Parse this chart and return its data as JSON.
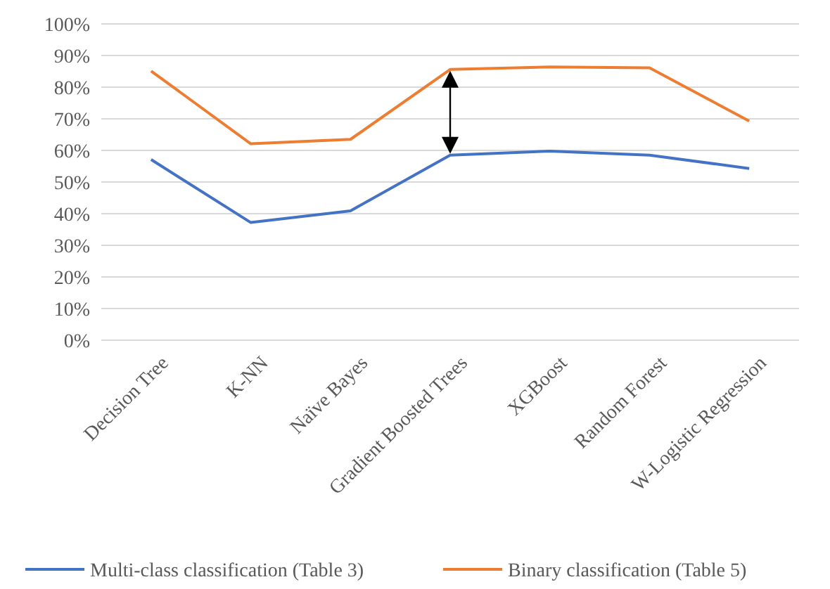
{
  "chart_data": {
    "type": "line",
    "categories": [
      "Decision Tree",
      "K-NN",
      "Naïve Bayes",
      "Gradient Boosted Trees",
      "XGBoost",
      "Random Forest",
      "W-Logistic Regression"
    ],
    "series": [
      {
        "name": "Multi-class classification (Table 3)",
        "color": "#4472c4",
        "values": [
          57.1,
          37.2,
          40.9,
          58.5,
          59.8,
          58.5,
          54.3
        ]
      },
      {
        "name": "Binary classification (Table 5)",
        "color": "#ed7d31",
        "values": [
          85.1,
          62.1,
          63.5,
          85.6,
          86.4,
          86.1,
          69.3
        ]
      }
    ],
    "ylim": [
      0,
      100
    ],
    "yticks": [
      {
        "value": 0,
        "label": "0%"
      },
      {
        "value": 10,
        "label": "10%"
      },
      {
        "value": 20,
        "label": "20%"
      },
      {
        "value": 30,
        "label": "30%"
      },
      {
        "value": 40,
        "label": "40%"
      },
      {
        "value": 50,
        "label": "50%"
      },
      {
        "value": 60,
        "label": "60%"
      },
      {
        "value": 70,
        "label": "70%"
      },
      {
        "value": 80,
        "label": "80%"
      },
      {
        "value": 90,
        "label": "90%"
      },
      {
        "value": 100,
        "label": "100%"
      }
    ],
    "grid": "y",
    "legend": "bottom",
    "marker": "none",
    "line_style": "solid"
  }
}
